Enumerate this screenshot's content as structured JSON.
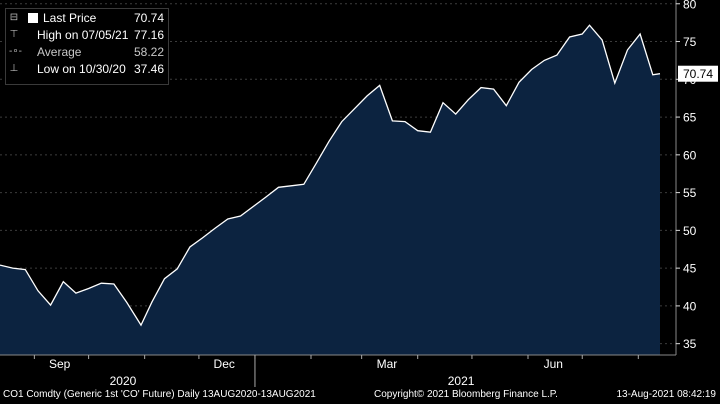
{
  "chart_data": {
    "type": "area",
    "series": [
      {
        "name": "Last Price",
        "x": [
          "2020-08-13",
          "2020-08-20",
          "2020-08-27",
          "2020-09-03",
          "2020-09-10",
          "2020-09-17",
          "2020-09-24",
          "2020-10-01",
          "2020-10-08",
          "2020-10-15",
          "2020-10-22",
          "2020-10-30",
          "2020-11-05",
          "2020-11-12",
          "2020-11-19",
          "2020-11-26",
          "2020-12-03",
          "2020-12-10",
          "2020-12-17",
          "2020-12-24",
          "2021-01-07",
          "2021-01-14",
          "2021-01-21",
          "2021-01-28",
          "2021-02-04",
          "2021-02-11",
          "2021-02-18",
          "2021-02-25",
          "2021-03-04",
          "2021-03-11",
          "2021-03-18",
          "2021-03-25",
          "2021-04-01",
          "2021-04-08",
          "2021-04-15",
          "2021-04-22",
          "2021-04-29",
          "2021-05-06",
          "2021-05-13",
          "2021-05-20",
          "2021-05-27",
          "2021-06-03",
          "2021-06-10",
          "2021-06-17",
          "2021-06-24",
          "2021-07-01",
          "2021-07-05",
          "2021-07-12",
          "2021-07-19",
          "2021-07-26",
          "2021-08-02",
          "2021-08-09",
          "2021-08-13"
        ],
        "values": [
          45.4,
          45.0,
          44.8,
          42.0,
          40.1,
          43.2,
          41.7,
          42.3,
          43.0,
          42.9,
          40.5,
          37.46,
          40.5,
          43.6,
          44.9,
          47.8,
          49.0,
          50.3,
          51.5,
          51.9,
          54.4,
          55.7,
          55.9,
          56.1,
          58.9,
          61.8,
          64.4,
          66.1,
          67.8,
          69.2,
          64.5,
          64.4,
          63.2,
          63.0,
          66.9,
          65.4,
          67.3,
          68.9,
          68.7,
          66.5,
          69.6,
          71.3,
          72.5,
          73.2,
          75.6,
          76.0,
          77.16,
          75.2,
          69.5,
          73.9,
          76.0,
          70.6,
          70.74
        ]
      }
    ],
    "y_ticks": [
      "35",
      "40",
      "45",
      "50",
      "55",
      "60",
      "65",
      "70",
      "75",
      "80"
    ],
    "x_ticks": [
      "Sep",
      "Dec",
      "Mar",
      "Jun"
    ],
    "year_labels": [
      "2020",
      "2021"
    ],
    "ylim": [
      33.5,
      80.5
    ],
    "last_value_tag": "70.74",
    "area_color": "#0c2340",
    "line_color": "#ffffff"
  },
  "legend": {
    "rows": [
      {
        "label": "Last Price",
        "value": "70.74"
      },
      {
        "label": "High on 07/05/21",
        "value": "77.16"
      },
      {
        "label": "Average",
        "value": "58.22"
      },
      {
        "label": "Low on 10/30/20",
        "value": "37.46"
      }
    ]
  },
  "footer": {
    "left": "CO1 Comdty (Generic 1st 'CO' Future)  Daily 13AUG2020-13AUG2021",
    "copyright": "Copyright© 2021 Bloomberg Finance L.P.",
    "timestamp": "13-Aug-2021 08:42:19"
  }
}
